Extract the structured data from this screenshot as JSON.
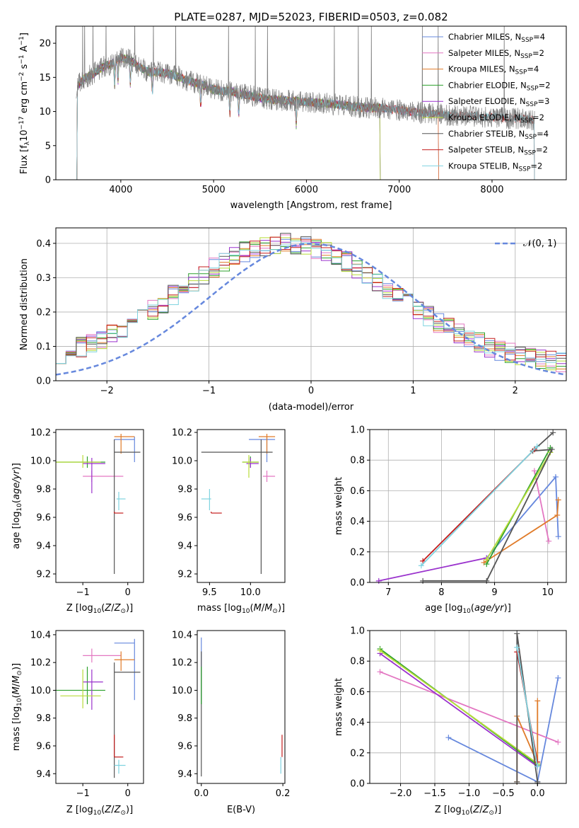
{
  "chart_data": [
    {
      "id": "spectrum",
      "type": "line",
      "title": "PLATE=0287, MJD=52023, FIBERID=0503, z=0.082",
      "xlabel": "wavelength [Angstrom, rest frame]",
      "ylabel": "Flux [f_λ 10^-17 erg cm^-2 s^-1 A^-1]",
      "ylabel_parts": {
        "a": "Flux [f",
        "b": "λ",
        "c": "10",
        "d": "−17",
        "e": " erg cm",
        "f": "−2",
        "g": " s",
        "h": "−1",
        "i": " A",
        "j": "−1",
        "k": "]"
      },
      "xlim": [
        3300,
        8800
      ],
      "ylim": [
        0,
        22.5
      ],
      "xticks": [
        "4000",
        "5000",
        "6000",
        "7000",
        "8000"
      ],
      "xtick_values": [
        4000,
        5000,
        6000,
        7000,
        8000
      ],
      "yticks": [
        "0",
        "5",
        "10",
        "15",
        "20"
      ],
      "ytick_values": [
        0,
        5,
        10,
        15,
        20
      ],
      "grid": false,
      "legend_placement": "top-right",
      "observed_range": [
        3520,
        8460
      ],
      "continuum": {
        "x": [
          3520,
          3600,
          3700,
          3800,
          3900,
          4000,
          4100,
          4200,
          4300,
          4400,
          4500,
          4600,
          4700,
          4800,
          4900,
          5000,
          5200,
          5400,
          5600,
          5800,
          6000,
          6200,
          6400,
          6600,
          6800,
          7000,
          7200,
          7400,
          7600,
          7800,
          8000,
          8200,
          8460
        ],
        "y": [
          13.5,
          14.8,
          15.5,
          16.5,
          17.0,
          17.8,
          17.6,
          16.5,
          15.8,
          15.8,
          15.6,
          15.2,
          14.6,
          14.2,
          13.8,
          13.2,
          12.9,
          12.3,
          11.8,
          11.6,
          11.4,
          11.2,
          10.9,
          10.6,
          10.5,
          10.2,
          9.9,
          9.6,
          9.4,
          9.3,
          9.2,
          9.0,
          8.8
        ]
      },
      "series": [
        {
          "name": "Chabrier MILES, N",
          "nssp": "4",
          "color": "#6688dd",
          "x_end": 7430
        },
        {
          "name": "Salpeter MILES, N",
          "nssp": "2",
          "color": "#e377c2",
          "x_end": 7430
        },
        {
          "name": "Kroupa MILES, N",
          "nssp": "4",
          "color": "#e07b29",
          "x_end": 7430
        },
        {
          "name": "Chabrier ELODIE, N",
          "nssp": "2",
          "color": "#2ca02c",
          "x_end": 6800
        },
        {
          "name": "Salpeter ELODIE, N",
          "nssp": "3",
          "color": "#9a32cd",
          "x_end": 6800
        },
        {
          "name": "Kroupa ELODIE, N",
          "nssp": "2",
          "color": "#b8dc3a",
          "x_end": 6800
        },
        {
          "name": "Chabrier STELIB, N",
          "nssp": "4",
          "color": "#555555",
          "x_end": 8460
        },
        {
          "name": "Salpeter STELIB, N",
          "nssp": "2",
          "color": "#c41e1e",
          "x_end": 8460
        },
        {
          "name": "Kroupa STELIB, N",
          "nssp": "2",
          "color": "#7fd3e0",
          "x_end": 8460
        }
      ],
      "nssp_label": "SSP"
    },
    {
      "id": "residuals",
      "type": "histogram",
      "xlabel": "(data-model)/error",
      "ylabel": "Normed distribution",
      "xlim": [
        -2.5,
        2.5
      ],
      "ylim": [
        0,
        0.445
      ],
      "xticks": [
        "−2",
        "−1",
        "0",
        "1",
        "2"
      ],
      "xtick_values": [
        -2,
        -1,
        0,
        1,
        2
      ],
      "yticks": [
        "0.0",
        "0.1",
        "0.2",
        "0.3",
        "0.4"
      ],
      "ytick_values": [
        0,
        0.1,
        0.2,
        0.3,
        0.4
      ],
      "grid": true,
      "legend_placement": "top-right",
      "reference_curve": {
        "name": "N(0,1)",
        "label_script": "𝒩(0, 1)",
        "mean": 0,
        "sigma": 1,
        "color": "#6688dd"
      },
      "bin_edges_range": [
        -2.5,
        2.5
      ],
      "bin_count": 50
    },
    {
      "id": "age-vs-Z",
      "type": "scatter",
      "xlabel": "Z [log10(Z/Z⊙)]",
      "ylabel": "age [log10(age/yr)]",
      "xlim": [
        -1.6,
        0.35
      ],
      "ylim": [
        9.14,
        10.22
      ],
      "xticks": [
        "−1",
        "0"
      ],
      "xtick_values": [
        -1,
        0
      ],
      "yticks": [
        "9.2",
        "9.4",
        "9.6",
        "9.8",
        "10.0",
        "10.2"
      ],
      "ytick_values": [
        9.2,
        9.4,
        9.6,
        9.8,
        10.0,
        10.2
      ],
      "grid": false
    },
    {
      "id": "age-vs-mass",
      "type": "scatter",
      "xlabel": "mass [log10(M/M⊙)]",
      "ylabel": "",
      "xlim": [
        9.35,
        10.42
      ],
      "ylim": [
        9.14,
        10.22
      ],
      "xticks": [
        "9.5",
        "10.0"
      ],
      "xtick_values": [
        9.5,
        10.0
      ],
      "yticks": [
        "9.2",
        "9.4",
        "9.6",
        "9.8",
        "10.0",
        "10.2"
      ],
      "ytick_values": [
        9.2,
        9.4,
        9.6,
        9.8,
        10.0,
        10.2
      ],
      "grid": false
    },
    {
      "id": "weight-vs-age",
      "type": "line",
      "xlabel": "age [log10(age/yr)]",
      "ylabel": "mass weight",
      "xlim": [
        6.65,
        10.35
      ],
      "ylim": [
        0,
        1.0
      ],
      "xticks": [
        "7",
        "8",
        "9",
        "10"
      ],
      "xtick_values": [
        7,
        8,
        9,
        10
      ],
      "yticks": [
        "0.0",
        "0.2",
        "0.4",
        "0.6",
        "0.8",
        "1.0"
      ],
      "ytick_values": [
        0,
        0.2,
        0.4,
        0.6,
        0.8,
        1.0
      ],
      "grid": true,
      "series": [
        {
          "color": "#6688dd",
          "x": [
            8.85,
            10.15,
            10.2
          ],
          "y": [
            0.16,
            0.69,
            0.3
          ]
        },
        {
          "color": "#e377c2",
          "x": [
            9.75,
            10.02
          ],
          "y": [
            0.73,
            0.27
          ]
        },
        {
          "color": "#e07b29",
          "x": [
            8.8,
            10.18,
            10.2
          ],
          "y": [
            0.13,
            0.44,
            0.54
          ]
        },
        {
          "color": "#2ca02c",
          "x": [
            8.85,
            10.05
          ],
          "y": [
            0.12,
            0.88
          ]
        },
        {
          "color": "#9a32cd",
          "x": [
            6.82,
            8.85
          ],
          "y": [
            0.01,
            0.16
          ]
        },
        {
          "color": "#b8dc3a",
          "x": [
            8.85,
            10.05
          ],
          "y": [
            0.15,
            0.85
          ]
        },
        {
          "color": "#555555",
          "x": [
            7.65,
            8.85,
            10.08,
            9.72,
            10.1
          ],
          "y": [
            0.01,
            0.01,
            0.87,
            0.86,
            0.98
          ]
        },
        {
          "color": "#c41e1e",
          "x": [
            7.65,
            9.75
          ],
          "y": [
            0.14,
            0.87
          ]
        },
        {
          "color": "#7fd3e0",
          "x": [
            7.62,
            9.8
          ],
          "y": [
            0.11,
            0.89
          ]
        }
      ]
    },
    {
      "id": "mass-vs-Z",
      "type": "scatter",
      "xlabel": "Z [log10(Z/Z⊙)]",
      "ylabel": "mass [log10(M/M⊙)]",
      "xlim": [
        -1.6,
        0.35
      ],
      "ylim": [
        9.33,
        10.43
      ],
      "xticks": [
        "−1",
        "0"
      ],
      "xtick_values": [
        -1,
        0
      ],
      "yticks": [
        "9.4",
        "9.6",
        "9.8",
        "10.0",
        "10.2",
        "10.4"
      ],
      "ytick_values": [
        9.4,
        9.6,
        9.8,
        10.0,
        10.2,
        10.4
      ],
      "grid": false
    },
    {
      "id": "mass-vs-ebv",
      "type": "scatter",
      "xlabel": "E(B-V)",
      "ylabel": "",
      "xlim": [
        -0.01,
        0.205
      ],
      "ylim": [
        9.33,
        10.43
      ],
      "xticks": [
        "0.0",
        "0.2"
      ],
      "xtick_values": [
        0.0,
        0.2
      ],
      "yticks": [
        "9.4",
        "9.6",
        "9.8",
        "10.0",
        "10.2",
        "10.4"
      ],
      "ytick_values": [
        9.4,
        9.6,
        9.8,
        10.0,
        10.2,
        10.4
      ],
      "grid": false
    },
    {
      "id": "weight-vs-Z",
      "type": "line",
      "xlabel": "Z [log10(Z/Z⊙)]",
      "ylabel": "mass weight",
      "xlim": [
        -2.45,
        0.42
      ],
      "ylim": [
        0,
        1.0
      ],
      "xticks": [
        "−2.0",
        "−1.5",
        "−1.0",
        "−0.5",
        "0.0"
      ],
      "xtick_values": [
        -2.0,
        -1.5,
        -1.0,
        -0.5,
        0.0
      ],
      "yticks": [
        "0.0",
        "0.2",
        "0.4",
        "0.6",
        "0.8",
        "1.0"
      ],
      "ytick_values": [
        0,
        0.2,
        0.4,
        0.6,
        0.8,
        1.0
      ],
      "grid": true,
      "series": [
        {
          "color": "#6688dd",
          "x": [
            -1.3,
            0.0,
            0.3
          ],
          "y": [
            0.3,
            0.01,
            0.69
          ]
        },
        {
          "color": "#e377c2",
          "x": [
            -2.3,
            0.3
          ],
          "y": [
            0.73,
            0.27
          ]
        },
        {
          "color": "#e07b29",
          "x": [
            -0.3,
            -0.3,
            0.0,
            0.0
          ],
          "y": [
            0.01,
            0.44,
            0.13,
            0.54
          ]
        },
        {
          "color": "#2ca02c",
          "x": [
            -2.3,
            0.0
          ],
          "y": [
            0.88,
            0.12
          ]
        },
        {
          "color": "#9a32cd",
          "x": [
            -2.3,
            0.0
          ],
          "y": [
            0.85,
            0.11
          ]
        },
        {
          "color": "#b8dc3a",
          "x": [
            -2.3,
            0.0
          ],
          "y": [
            0.87,
            0.13
          ]
        },
        {
          "color": "#555555",
          "x": [
            -0.3,
            -0.3,
            0.0,
            0.0
          ],
          "y": [
            0.01,
            0.98,
            0.01,
            0.0
          ]
        },
        {
          "color": "#c41e1e",
          "x": [
            -0.3,
            0.0
          ],
          "y": [
            0.86,
            0.14
          ]
        },
        {
          "color": "#7fd3e0",
          "x": [
            -0.3,
            0.0
          ],
          "y": [
            0.89,
            0.11
          ]
        }
      ]
    }
  ],
  "error_points": {
    "colors": [
      "#6688dd",
      "#e377c2",
      "#e07b29",
      "#2ca02c",
      "#9a32cd",
      "#b8dc3a",
      "#555555",
      "#c41e1e",
      "#7fd3e0"
    ],
    "age_Z": [
      {
        "c": 0,
        "x": 0.15,
        "y": 10.15,
        "xe": [
          -0.3,
          0.15
        ],
        "ye": [
          9.99,
          10.17
        ]
      },
      {
        "c": 1,
        "x": -0.8,
        "y": 9.89,
        "xe": [
          -1.0,
          -0.1
        ],
        "ye": [
          9.85,
          9.93
        ]
      },
      {
        "c": 2,
        "x": -0.15,
        "y": 10.17,
        "xe": [
          -0.3,
          0.15
        ],
        "ye": [
          10.05,
          10.19
        ]
      },
      {
        "c": 3,
        "x": -0.9,
        "y": 9.99,
        "xe": [
          -1.6,
          -0.5
        ],
        "ye": [
          9.95,
          10.03
        ]
      },
      {
        "c": 4,
        "x": -0.8,
        "y": 9.98,
        "xe": [
          -1.0,
          -0.5
        ],
        "ye": [
          9.77,
          10.02
        ]
      },
      {
        "c": 5,
        "x": -1.0,
        "y": 9.99,
        "xe": [
          -1.6,
          -0.6
        ],
        "ye": [
          9.95,
          10.04
        ]
      },
      {
        "c": 6,
        "x": -0.3,
        "y": 10.06,
        "xe": [
          -0.3,
          0.28
        ],
        "ye": [
          9.2,
          10.15
        ]
      },
      {
        "c": 7,
        "x": -0.3,
        "y": 9.63,
        "xe": [
          -0.3,
          -0.1
        ],
        "ye": [
          9.63,
          9.64
        ]
      },
      {
        "c": 8,
        "x": -0.2,
        "y": 9.73,
        "xe": [
          -0.25,
          -0.05
        ],
        "ye": [
          9.65,
          9.78
        ]
      }
    ],
    "age_mass": [
      {
        "c": 0,
        "x": 10.2,
        "y": 10.15,
        "xe": [
          9.98,
          10.3
        ],
        "ye": [
          9.99,
          10.17
        ]
      },
      {
        "c": 1,
        "x": 10.2,
        "y": 9.89,
        "xe": [
          10.15,
          10.3
        ],
        "ye": [
          9.85,
          9.93
        ]
      },
      {
        "c": 2,
        "x": 10.2,
        "y": 10.17,
        "xe": [
          10.1,
          10.3
        ],
        "ye": [
          10.05,
          10.19
        ]
      },
      {
        "c": 3,
        "x": 10.0,
        "y": 9.99,
        "xe": [
          9.9,
          10.1
        ],
        "ye": [
          9.95,
          10.03
        ]
      },
      {
        "c": 4,
        "x": 10.0,
        "y": 9.98,
        "xe": [
          9.95,
          10.1
        ],
        "ye": [
          9.95,
          10.02
        ]
      },
      {
        "c": 5,
        "x": 9.98,
        "y": 9.99,
        "xe": [
          9.9,
          10.1
        ],
        "ye": [
          9.88,
          10.04
        ]
      },
      {
        "c": 6,
        "x": 10.13,
        "y": 10.06,
        "xe": [
          9.4,
          10.27
        ],
        "ye": [
          9.2,
          10.15
        ]
      },
      {
        "c": 7,
        "x": 9.52,
        "y": 9.63,
        "xe": [
          9.52,
          9.65
        ],
        "ye": [
          9.63,
          9.64
        ]
      },
      {
        "c": 8,
        "x": 9.5,
        "y": 9.73,
        "xe": [
          9.4,
          9.52
        ],
        "ye": [
          9.65,
          9.8
        ]
      }
    ],
    "mass_Z": [
      {
        "c": 0,
        "x": 0.15,
        "y": 10.34,
        "xe": [
          -0.3,
          0.15
        ],
        "ye": [
          9.93,
          10.37
        ]
      },
      {
        "c": 1,
        "x": -0.8,
        "y": 10.25,
        "xe": [
          -1.0,
          -0.15
        ],
        "ye": [
          10.2,
          10.3
        ]
      },
      {
        "c": 2,
        "x": -0.15,
        "y": 10.22,
        "xe": [
          -0.3,
          0.15
        ],
        "ye": [
          10.14,
          10.28
        ]
      },
      {
        "c": 3,
        "x": -0.9,
        "y": 10.0,
        "xe": [
          -1.6,
          -0.5
        ],
        "ye": [
          9.9,
          10.17
        ]
      },
      {
        "c": 4,
        "x": -0.8,
        "y": 10.06,
        "xe": [
          -1.0,
          -0.55
        ],
        "ye": [
          9.86,
          10.15
        ]
      },
      {
        "c": 5,
        "x": -1.0,
        "y": 9.96,
        "xe": [
          -1.5,
          -0.6
        ],
        "ye": [
          9.87,
          10.15
        ]
      },
      {
        "c": 6,
        "x": -0.3,
        "y": 10.13,
        "xe": [
          -0.3,
          0.28
        ],
        "ye": [
          9.37,
          10.2
        ]
      },
      {
        "c": 7,
        "x": -0.3,
        "y": 9.52,
        "xe": [
          -0.3,
          -0.1
        ],
        "ye": [
          9.52,
          9.68
        ]
      },
      {
        "c": 8,
        "x": -0.2,
        "y": 9.46,
        "xe": [
          -0.3,
          -0.05
        ],
        "ye": [
          9.4,
          9.5
        ]
      }
    ],
    "mass_ebv": [
      {
        "c": 0,
        "x": 0.0,
        "y": 10.2,
        "xe": [
          0.0,
          0.0
        ],
        "ye": [
          9.9,
          10.38
        ]
      },
      {
        "c": 6,
        "x": 0.0,
        "y": 9.8,
        "xe": [
          0.0,
          0.0
        ],
        "ye": [
          9.38,
          10.28
        ]
      },
      {
        "c": 3,
        "x": 0.0,
        "y": 10.0,
        "xe": [
          0.0,
          0.0
        ],
        "ye": [
          9.9,
          10.17
        ]
      },
      {
        "c": 7,
        "x": 0.198,
        "y": 9.6,
        "xe": [
          0.198,
          0.198
        ],
        "ye": [
          9.52,
          9.68
        ]
      },
      {
        "c": 8,
        "x": 0.195,
        "y": 9.46,
        "xe": [
          0.195,
          0.195
        ],
        "ye": [
          9.4,
          9.52
        ]
      }
    ]
  }
}
